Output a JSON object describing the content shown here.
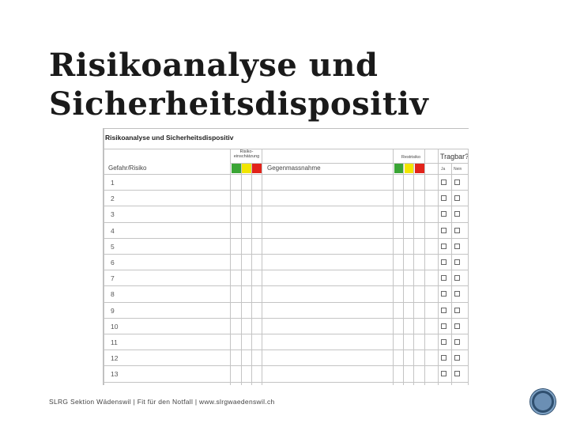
{
  "slide": {
    "title_line1": "Risikoanalyse und",
    "title_line2": "Sicherheitsdispositiv"
  },
  "form": {
    "title": "Risikoanalyse und Sicherheitsdispositiv",
    "risk_assessment_label": "Risiko-einschätzung",
    "residual_risk_label": "Restrisiko",
    "acceptable_label": "Tragbar?",
    "yes_label": "Ja",
    "no_label": "Nein",
    "hazard_header": "Gefahr/Risiko",
    "measure_header": "Gegenmassnahme",
    "traffic_colors": [
      "#3aa535",
      "#f2e500",
      "#e2231a"
    ],
    "row_numbers": [
      "1",
      "2",
      "3",
      "4",
      "5",
      "6",
      "7",
      "8",
      "9",
      "10",
      "11",
      "12",
      "13"
    ]
  },
  "footer": {
    "text": "SLRG Sektion Wädenswil | Fit für den Notfall | www.slrgwaedenswil.ch"
  }
}
